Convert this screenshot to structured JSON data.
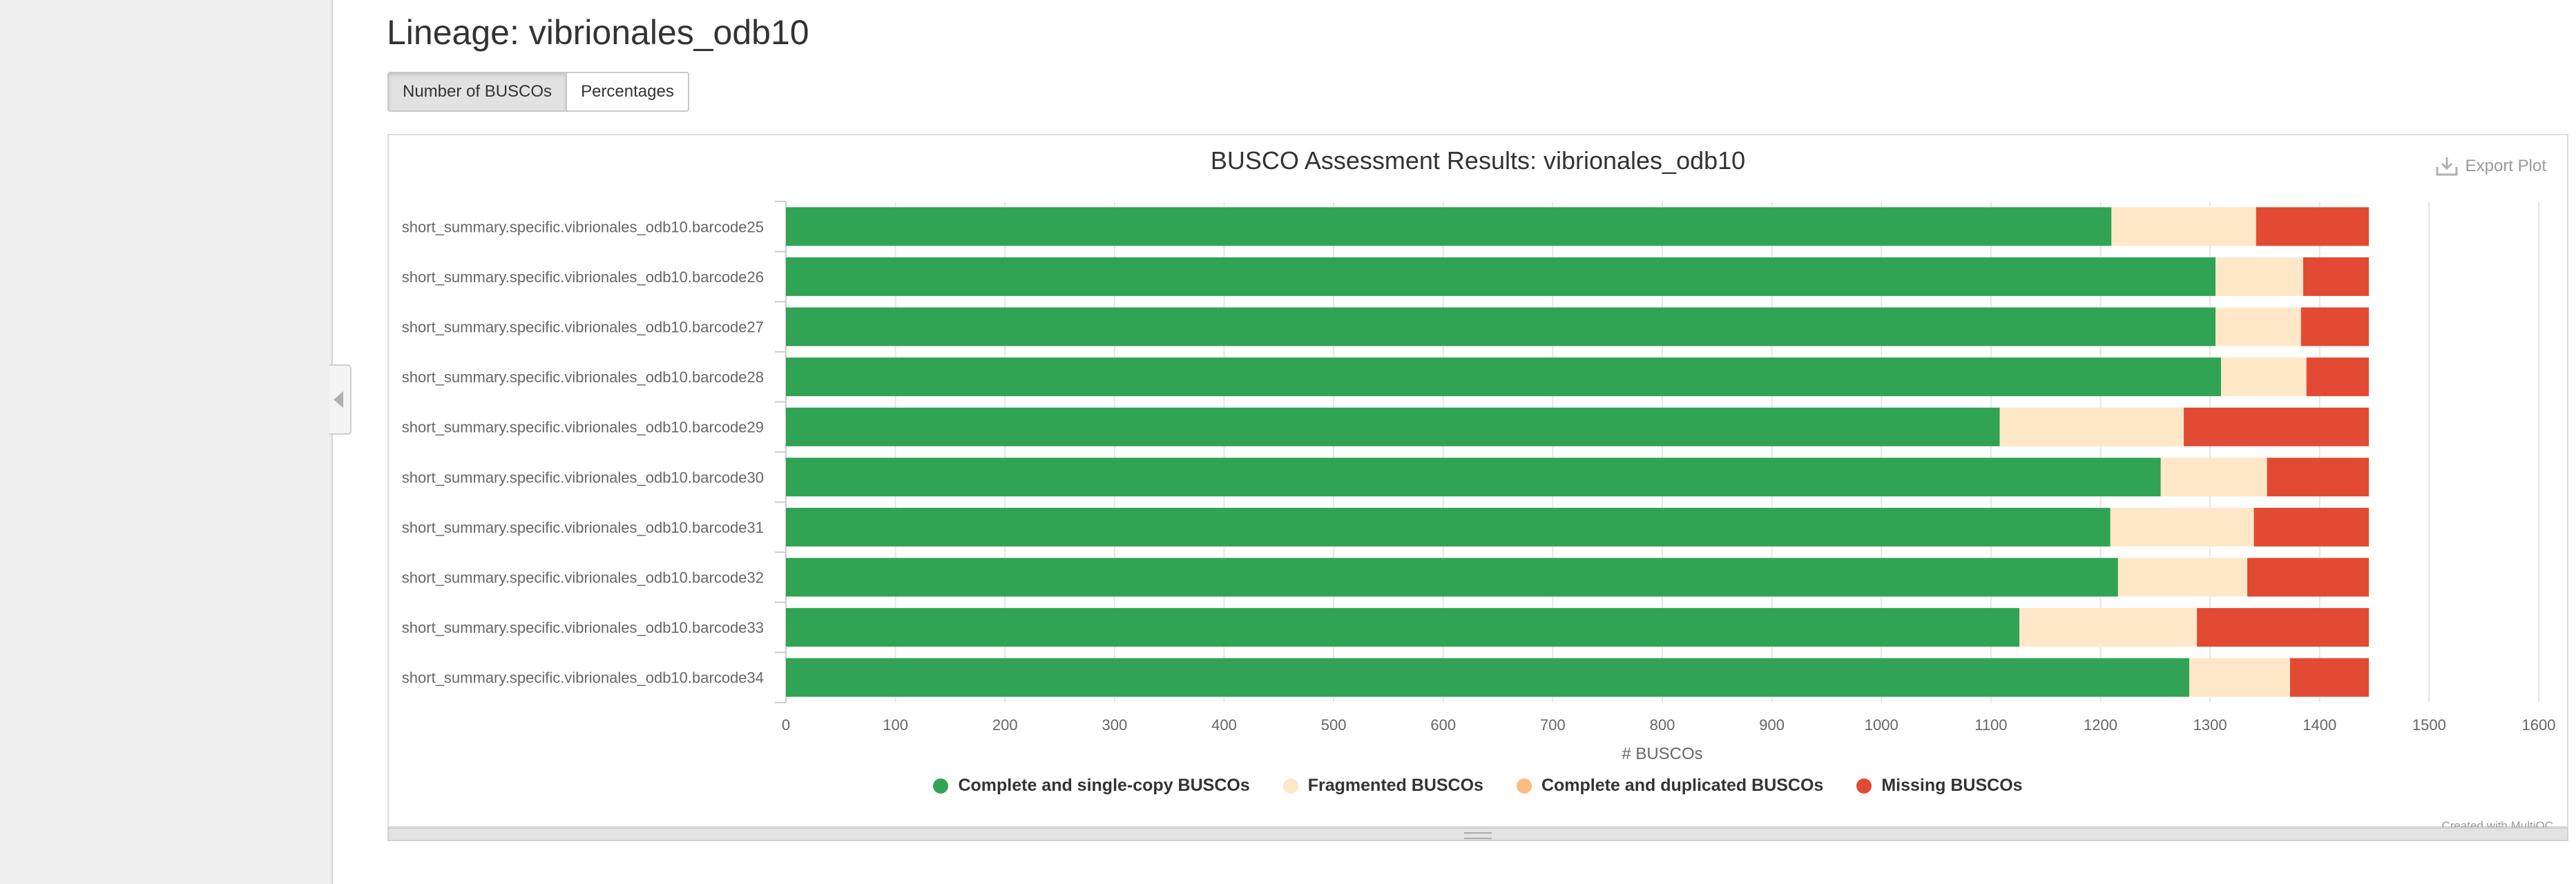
{
  "page": {
    "title": "Lineage: vibrionales_odb10"
  },
  "toolbar": {
    "buttons": [
      {
        "label": "Number of BUSCOs",
        "active": true
      },
      {
        "label": "Percentages",
        "active": false
      }
    ]
  },
  "plot": {
    "export_label": "Export Plot",
    "credit": "Created with MultiQC"
  },
  "chart_data": {
    "type": "bar",
    "orientation": "horizontal",
    "stacked": true,
    "title": "BUSCO Assessment Results: vibrionales_odb10",
    "xlabel": "# BUSCOs",
    "ylabel": "",
    "xlim": [
      0,
      1600
    ],
    "xticks": [
      0,
      100,
      200,
      300,
      400,
      500,
      600,
      700,
      800,
      900,
      1000,
      1100,
      1200,
      1300,
      1400,
      1500,
      1600
    ],
    "grid": true,
    "legend_position": "bottom",
    "categories": [
      "short_summary.specific.vibrionales_odb10.barcode25",
      "short_summary.specific.vibrionales_odb10.barcode26",
      "short_summary.specific.vibrionales_odb10.barcode27",
      "short_summary.specific.vibrionales_odb10.barcode28",
      "short_summary.specific.vibrionales_odb10.barcode29",
      "short_summary.specific.vibrionales_odb10.barcode30",
      "short_summary.specific.vibrionales_odb10.barcode31",
      "short_summary.specific.vibrionales_odb10.barcode32",
      "short_summary.specific.vibrionales_odb10.barcode33",
      "short_summary.specific.vibrionales_odb10.barcode34"
    ],
    "series": [
      {
        "name": "Complete and single-copy BUSCOs",
        "color": "#31a354",
        "values": [
          1210,
          1305,
          1305,
          1310,
          1108,
          1255,
          1209,
          1216,
          1126,
          1281
        ]
      },
      {
        "name": "Fragmented BUSCOs",
        "color": "#fee8c8",
        "values": [
          132,
          80,
          78,
          78,
          168,
          97,
          131,
          118,
          162,
          92
        ]
      },
      {
        "name": "Complete and duplicated BUSCOs",
        "color": "#fdbb84",
        "values": [
          0,
          0,
          0,
          0,
          0,
          0,
          0,
          0,
          0,
          0
        ]
      },
      {
        "name": "Missing BUSCOs",
        "color": "#e34a33",
        "values": [
          103,
          60,
          62,
          57,
          169,
          93,
          105,
          111,
          157,
          72
        ]
      }
    ]
  }
}
